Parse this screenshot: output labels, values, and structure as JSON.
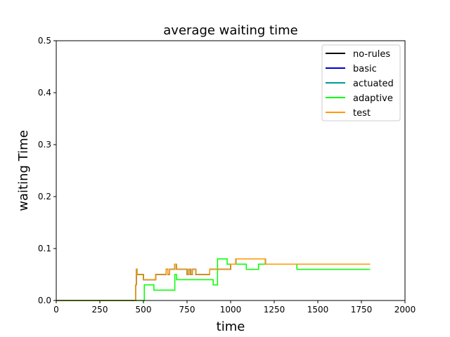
{
  "chart_data": {
    "type": "line",
    "title": "average waiting time",
    "xlabel": "time",
    "ylabel": "waiting Time",
    "xlim": [
      0,
      2000
    ],
    "ylim": [
      0,
      0.5
    ],
    "xticks": [
      0,
      250,
      500,
      750,
      1000,
      1250,
      1500,
      1750,
      2000
    ],
    "yticks": [
      0.0,
      0.1,
      0.2,
      0.3,
      0.4,
      0.5
    ],
    "xtick_labels": [
      "0",
      "250",
      "500",
      "750",
      "1000",
      "1250",
      "1500",
      "1750",
      "2000"
    ],
    "ytick_labels": [
      "0.0",
      "0.1",
      "0.2",
      "0.3",
      "0.4",
      "0.5"
    ],
    "grid": false,
    "legend_position": "top-right",
    "step": true,
    "series": [
      {
        "name": "no-rules",
        "color": "#000000",
        "x": [
          0,
          455,
          460,
          463,
          470,
          500,
          570,
          590,
          600,
          630,
          640,
          650,
          670,
          680,
          690,
          750,
          760,
          770,
          780,
          800,
          880,
          960,
          1000,
          1030,
          1040,
          1190,
          1200,
          1800
        ],
        "y": [
          0,
          0.03,
          0.06,
          0.05,
          0.05,
          0.04,
          0.05,
          0.05,
          0.05,
          0.06,
          0.05,
          0.06,
          0.06,
          0.07,
          0.06,
          0.05,
          0.06,
          0.05,
          0.06,
          0.05,
          0.06,
          0.06,
          0.07,
          0.08,
          0.08,
          0.08,
          0.07,
          0.07
        ]
      },
      {
        "name": "basic",
        "color": "#0000cc",
        "x": [
          0,
          455,
          460,
          463,
          470,
          500,
          570,
          590,
          600,
          630,
          640,
          650,
          670,
          680,
          690,
          750,
          760,
          770,
          780,
          800,
          880,
          960,
          1000,
          1030,
          1040,
          1190,
          1200,
          1800
        ],
        "y": [
          0,
          0.03,
          0.06,
          0.05,
          0.05,
          0.04,
          0.05,
          0.05,
          0.05,
          0.06,
          0.05,
          0.06,
          0.06,
          0.07,
          0.06,
          0.05,
          0.06,
          0.05,
          0.06,
          0.05,
          0.06,
          0.06,
          0.07,
          0.08,
          0.08,
          0.08,
          0.07,
          0.07
        ]
      },
      {
        "name": "actuated",
        "color": "#009999",
        "x": [
          0,
          455,
          460,
          463,
          470,
          500,
          570,
          590,
          600,
          630,
          640,
          650,
          670,
          680,
          690,
          750,
          760,
          770,
          780,
          800,
          880,
          960,
          1000,
          1030,
          1040,
          1190,
          1200,
          1800
        ],
        "y": [
          0,
          0.03,
          0.06,
          0.05,
          0.05,
          0.04,
          0.05,
          0.05,
          0.05,
          0.06,
          0.05,
          0.06,
          0.06,
          0.07,
          0.06,
          0.05,
          0.06,
          0.05,
          0.06,
          0.05,
          0.06,
          0.06,
          0.07,
          0.08,
          0.08,
          0.08,
          0.07,
          0.07
        ]
      },
      {
        "name": "adaptive",
        "color": "#00ff00",
        "x": [
          0,
          505,
          560,
          680,
          690,
          900,
          925,
          980,
          1030,
          1090,
          1160,
          1180,
          1380,
          1800
        ],
        "y": [
          0,
          0.03,
          0.02,
          0.05,
          0.04,
          0.03,
          0.08,
          0.07,
          0.07,
          0.06,
          0.07,
          0.07,
          0.06,
          0.06
        ]
      },
      {
        "name": "test",
        "color": "#ff9900",
        "x": [
          0,
          455,
          460,
          463,
          470,
          500,
          570,
          590,
          600,
          630,
          640,
          650,
          670,
          680,
          690,
          750,
          760,
          770,
          780,
          800,
          880,
          960,
          1000,
          1030,
          1040,
          1190,
          1200,
          1800
        ],
        "y": [
          0,
          0.03,
          0.06,
          0.05,
          0.05,
          0.04,
          0.05,
          0.05,
          0.05,
          0.06,
          0.05,
          0.06,
          0.06,
          0.07,
          0.06,
          0.05,
          0.06,
          0.05,
          0.06,
          0.05,
          0.06,
          0.06,
          0.07,
          0.08,
          0.08,
          0.08,
          0.07,
          0.07
        ]
      }
    ]
  }
}
